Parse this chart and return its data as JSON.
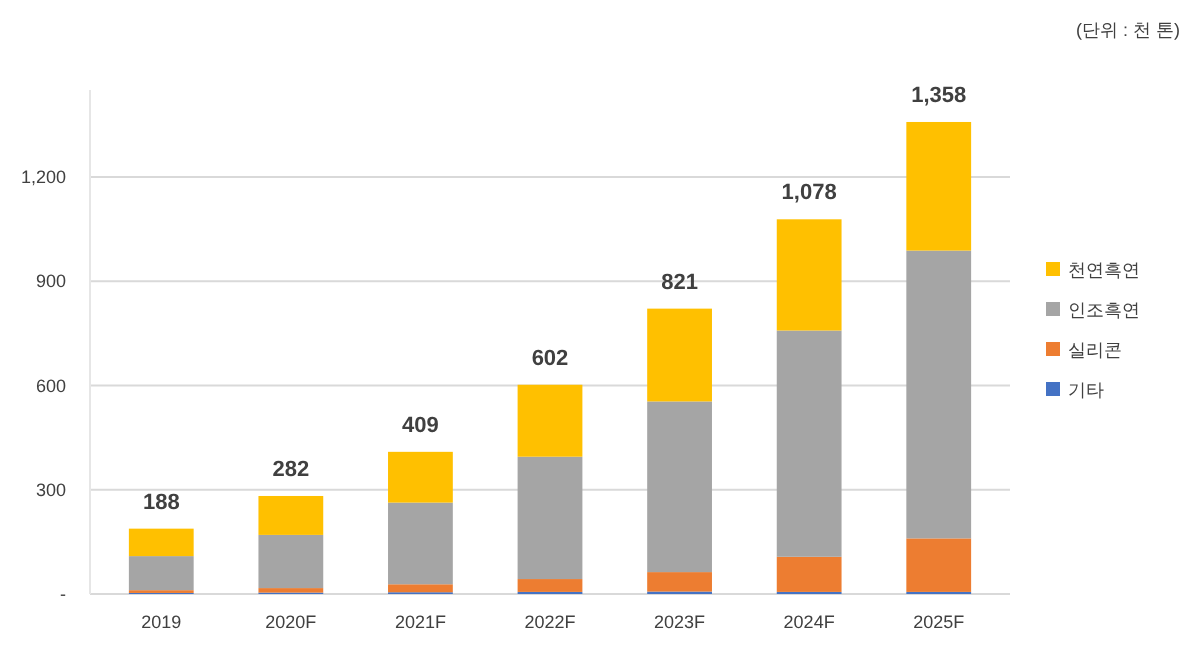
{
  "chart_data": {
    "type": "bar",
    "stacked": true,
    "categories": [
      "2019",
      "2020F",
      "2021F",
      "2022F",
      "2023F",
      "2024F",
      "2025F"
    ],
    "series": [
      {
        "name": "기타",
        "color": "#4472c4",
        "values": [
          3,
          4,
          5,
          6,
          7,
          6,
          6
        ]
      },
      {
        "name": "실리콘",
        "color": "#ed7d31",
        "values": [
          8,
          13,
          23,
          37,
          56,
          101,
          154
        ]
      },
      {
        "name": "인조흑연",
        "color": "#a5a5a5",
        "values": [
          98,
          153,
          235,
          352,
          491,
          651,
          828
        ]
      },
      {
        "name": "천연흑연",
        "color": "#ffc000",
        "values": [
          79,
          112,
          146,
          207,
          267,
          320,
          370
        ]
      }
    ],
    "totals": [
      "188",
      "282",
      "409",
      "602",
      "821",
      "1,078",
      "1,358"
    ],
    "ylim": [
      0,
      1450
    ],
    "yticks": [
      {
        "value": 0,
        "label": "-"
      },
      {
        "value": 300,
        "label": "300"
      },
      {
        "value": 600,
        "label": "600"
      },
      {
        "value": 900,
        "label": "900"
      },
      {
        "value": 1200,
        "label": "1,200"
      }
    ],
    "grid": "y",
    "legend": "right",
    "annotations": [
      "(단위 : 천 톤)"
    ]
  }
}
